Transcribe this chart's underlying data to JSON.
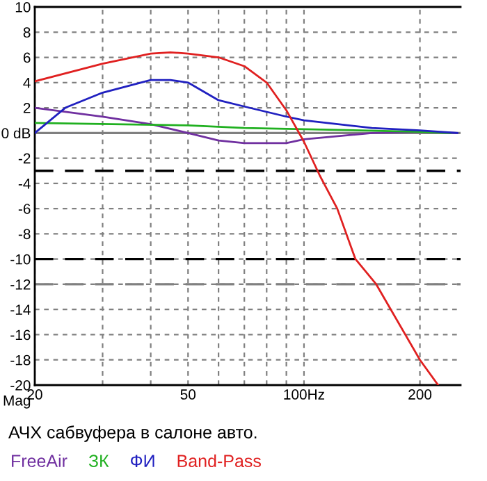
{
  "chart_data": {
    "type": "line",
    "ylabel": "Mag",
    "annotations": [
      "АЧХ сабвуфера в салоне авто."
    ],
    "log": "x",
    "xlim": [
      20,
      255
    ],
    "ylim": [
      -20,
      10
    ],
    "xticks": [
      20,
      {
        "value": 30,
        "label": null
      },
      {
        "value": 40,
        "label": null
      },
      50,
      {
        "value": 60,
        "label": null
      },
      {
        "value": 70,
        "label": null
      },
      {
        "value": 80,
        "label": null
      },
      {
        "value": 90,
        "label": null
      },
      {
        "value": 100,
        "label": "100Hz"
      },
      200
    ],
    "yticks": [
      10,
      8,
      6,
      4,
      2,
      {
        "value": 0,
        "label": "0 dB"
      },
      -2,
      -4,
      -6,
      -8,
      -10,
      -12,
      -14,
      -16,
      -18,
      -20
    ],
    "grid": true,
    "legend": "bottom",
    "line_style": "solid",
    "marker": "none",
    "ref_lines": [
      {
        "axis": "y",
        "value": 0,
        "color": "#808080",
        "line_style": "solid"
      },
      {
        "axis": "y",
        "value": -3,
        "color": "#000000",
        "line_style": "dashed"
      },
      {
        "axis": "y",
        "value": -10,
        "color": "#000000",
        "line_style": "dashed"
      },
      {
        "axis": "y",
        "value": -12,
        "color": "#808080",
        "line_style": "dashed"
      }
    ],
    "series": [
      {
        "name": "FreeAir",
        "color": "#7030a0",
        "x": [
          20,
          30,
          40,
          50,
          60,
          70,
          90,
          100,
          150,
          200,
          250
        ],
        "values": [
          2.0,
          1.3,
          0.7,
          0,
          -0.6,
          -0.8,
          -0.8,
          -0.5,
          0,
          0.1,
          0
        ]
      },
      {
        "name": "ЗК",
        "color": "#20b020",
        "x": [
          20,
          50,
          70,
          100,
          200,
          240
        ],
        "values": [
          0.8,
          0.6,
          0.4,
          0.3,
          0.1,
          0
        ]
      },
      {
        "name": "ФИ",
        "color": "#2020c0",
        "x": [
          20,
          24,
          30,
          40,
          45,
          50,
          60,
          70,
          90,
          100,
          150,
          200,
          250
        ],
        "values": [
          0,
          2.0,
          3.2,
          4.2,
          4.2,
          4.0,
          2.6,
          2.1,
          1.3,
          1.0,
          0.4,
          0.2,
          0
        ]
      },
      {
        "name": "Band-Pass",
        "color": "#e02020",
        "x": [
          20,
          30,
          40,
          45,
          50,
          60,
          70,
          80,
          90,
          100,
          110,
          122,
          136,
          154,
          200,
          223
        ],
        "values": [
          4.1,
          5.5,
          6.3,
          6.4,
          6.3,
          6.0,
          5.3,
          4.0,
          1.8,
          -0.7,
          -3.4,
          -6.0,
          -10,
          -12,
          -18,
          -20
        ]
      }
    ]
  }
}
